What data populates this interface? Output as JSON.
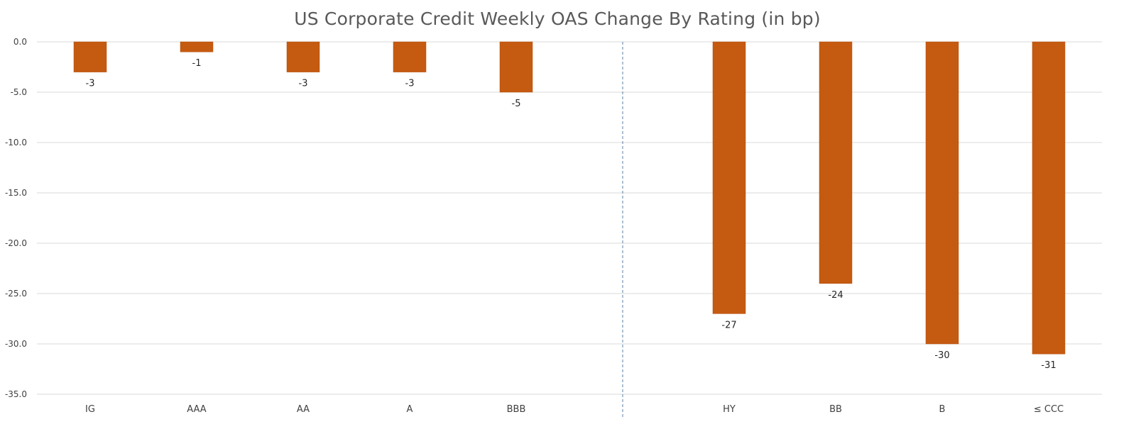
{
  "chart_data": {
    "type": "bar",
    "title": "US Corporate Credit Weekly OAS Change By Rating (in bp)",
    "categories": [
      "IG",
      "AAA",
      "AA",
      "A",
      "BBB",
      "",
      "HY",
      "BB",
      "B",
      "≤ CCC"
    ],
    "values": [
      -3,
      -1,
      -3,
      -3,
      -5,
      null,
      -27,
      -24,
      -30,
      -31
    ],
    "data_labels": [
      "-3",
      "-1",
      "-3",
      "-3",
      "-5",
      "",
      "-27",
      "-24",
      "-30",
      "-31"
    ],
    "ylim": [
      -35,
      0
    ],
    "yticks": [
      0,
      -5,
      -10,
      -15,
      -20,
      -25,
      -30,
      -35
    ],
    "ytick_labels": [
      "0.0",
      "-5.0",
      "-10.0",
      "-15.0",
      "-20.0",
      "-25.0",
      "-30.0",
      "-35.0"
    ],
    "separator_after_category": 4,
    "bar_color": "#C55A11",
    "grid": true,
    "legend": "none",
    "xlabel": "",
    "ylabel": ""
  }
}
